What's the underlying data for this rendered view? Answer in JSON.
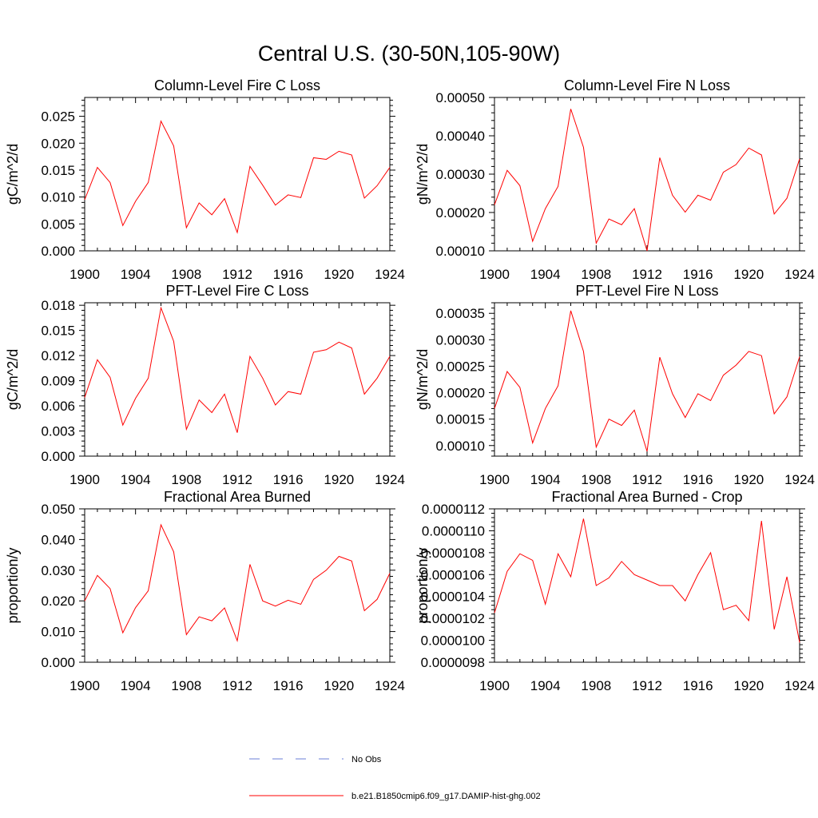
{
  "figure": {
    "title": "Central U.S. (30-50N,105-90W)"
  },
  "legend": {
    "items": [
      {
        "label": "No Obs",
        "style": "dashed",
        "color": "#6b7fd7"
      },
      {
        "label": "b.e21.B1850cmip6.f09_g17.DAMIP-hist-ghg.002",
        "style": "solid",
        "color": "#ff0000"
      }
    ]
  },
  "chart_data": [
    {
      "type": "line",
      "title": "Column-Level Fire C Loss",
      "ylabel": "gC/m^2/d",
      "xlabel": "",
      "xlim": [
        1900,
        1924
      ],
      "ylim": [
        0,
        0.0285
      ],
      "xticks": [
        "1900",
        "1904",
        "1908",
        "1912",
        "1916",
        "1920",
        "1924"
      ],
      "yticks": [
        "0.000",
        "0.005",
        "0.010",
        "0.015",
        "0.020",
        "0.025"
      ],
      "x": [
        1900,
        1901,
        1902,
        1903,
        1904,
        1905,
        1906,
        1907,
        1908,
        1909,
        1910,
        1911,
        1912,
        1913,
        1914,
        1915,
        1916,
        1917,
        1918,
        1919,
        1920,
        1921,
        1922,
        1923,
        1924
      ],
      "series": [
        {
          "name": "b.e21.B1850cmip6.f09_g17.DAMIP-hist-ghg.002",
          "color": "#ff0000",
          "values": [
            0.0095,
            0.0155,
            0.0127,
            0.0047,
            0.0092,
            0.0127,
            0.0241,
            0.0195,
            0.0043,
            0.0089,
            0.0067,
            0.0097,
            0.0034,
            0.0157,
            0.0122,
            0.0085,
            0.0104,
            0.0099,
            0.0173,
            0.017,
            0.0185,
            0.0178,
            0.0098,
            0.0121,
            0.0155
          ]
        }
      ]
    },
    {
      "type": "line",
      "title": "Column-Level Fire N Loss",
      "ylabel": "gN/m^2/d",
      "xlabel": "",
      "xlim": [
        1900,
        1924
      ],
      "ylim": [
        0.0001,
        0.0005
      ],
      "xticks": [
        "1900",
        "1904",
        "1908",
        "1912",
        "1916",
        "1920",
        "1924"
      ],
      "yticks": [
        "0.00010",
        "0.00020",
        "0.00030",
        "0.00040",
        "0.00050"
      ],
      "x": [
        1900,
        1901,
        1902,
        1903,
        1904,
        1905,
        1906,
        1907,
        1908,
        1909,
        1910,
        1911,
        1912,
        1913,
        1914,
        1915,
        1916,
        1917,
        1918,
        1919,
        1920,
        1921,
        1922,
        1923,
        1924
      ],
      "series": [
        {
          "name": "b.e21.B1850cmip6.f09_g17.DAMIP-hist-ghg.002",
          "color": "#ff0000",
          "values": [
            0.00022,
            0.00031,
            0.00027,
            0.000125,
            0.00021,
            0.000268,
            0.00047,
            0.00037,
            0.00012,
            0.000183,
            0.000168,
            0.00021,
            0.0001,
            0.000343,
            0.000245,
            0.000201,
            0.000245,
            0.000232,
            0.000305,
            0.000325,
            0.000368,
            0.00035,
            0.000196,
            0.000237,
            0.00034
          ]
        }
      ]
    },
    {
      "type": "line",
      "title": "PFT-Level Fire C Loss",
      "ylabel": "gC/m^2/d",
      "xlabel": "",
      "xlim": [
        1900,
        1924
      ],
      "ylim": [
        0,
        0.0183
      ],
      "xticks": [
        "1900",
        "1904",
        "1908",
        "1912",
        "1916",
        "1920",
        "1924"
      ],
      "yticks": [
        "0.000",
        "0.003",
        "0.006",
        "0.009",
        "0.012",
        "0.015",
        "0.018"
      ],
      "x": [
        1900,
        1901,
        1902,
        1903,
        1904,
        1905,
        1906,
        1907,
        1908,
        1909,
        1910,
        1911,
        1912,
        1913,
        1914,
        1915,
        1916,
        1917,
        1918,
        1919,
        1920,
        1921,
        1922,
        1923,
        1924
      ],
      "series": [
        {
          "name": "b.e21.B1850cmip6.f09_g17.DAMIP-hist-ghg.002",
          "color": "#ff0000",
          "values": [
            0.007,
            0.0115,
            0.0094,
            0.0037,
            0.0069,
            0.0093,
            0.0177,
            0.0137,
            0.0032,
            0.0067,
            0.0052,
            0.0074,
            0.0028,
            0.0119,
            0.0093,
            0.0061,
            0.0077,
            0.0074,
            0.0124,
            0.0127,
            0.0136,
            0.0129,
            0.0074,
            0.0093,
            0.0119
          ]
        }
      ]
    },
    {
      "type": "line",
      "title": "PFT-Level Fire N Loss",
      "ylabel": "gN/m^2/d",
      "xlabel": "",
      "xlim": [
        1900,
        1924
      ],
      "ylim": [
        8e-05,
        0.00037
      ],
      "xticks": [
        "1900",
        "1904",
        "1908",
        "1912",
        "1916",
        "1920",
        "1924"
      ],
      "yticks": [
        "0.00010",
        "0.00015",
        "0.00020",
        "0.00025",
        "0.00030",
        "0.00035"
      ],
      "x": [
        1900,
        1901,
        1902,
        1903,
        1904,
        1905,
        1906,
        1907,
        1908,
        1909,
        1910,
        1911,
        1912,
        1913,
        1914,
        1915,
        1916,
        1917,
        1918,
        1919,
        1920,
        1921,
        1922,
        1923,
        1924
      ],
      "series": [
        {
          "name": "b.e21.B1850cmip6.f09_g17.DAMIP-hist-ghg.002",
          "color": "#ff0000",
          "values": [
            0.00017,
            0.00024,
            0.00021,
            0.000105,
            0.00017,
            0.000213,
            0.000355,
            0.000278,
            9.7e-05,
            0.00015,
            0.000138,
            0.000167,
            8.9e-05,
            0.000267,
            0.000198,
            0.000153,
            0.000198,
            0.000185,
            0.000233,
            0.000252,
            0.000278,
            0.00027,
            0.00016,
            0.000192,
            0.000268
          ]
        }
      ]
    },
    {
      "type": "line",
      "title": "Fractional Area Burned",
      "ylabel": "proportion/y",
      "xlabel": "",
      "xlim": [
        1900,
        1924
      ],
      "ylim": [
        0,
        0.05
      ],
      "xticks": [
        "1900",
        "1904",
        "1908",
        "1912",
        "1916",
        "1920",
        "1924"
      ],
      "yticks": [
        "0.000",
        "0.010",
        "0.020",
        "0.030",
        "0.040",
        "0.050"
      ],
      "x": [
        1900,
        1901,
        1902,
        1903,
        1904,
        1905,
        1906,
        1907,
        1908,
        1909,
        1910,
        1911,
        1912,
        1913,
        1914,
        1915,
        1916,
        1917,
        1918,
        1919,
        1920,
        1921,
        1922,
        1923,
        1924
      ],
      "series": [
        {
          "name": "b.e21.B1850cmip6.f09_g17.DAMIP-hist-ghg.002",
          "color": "#ff0000",
          "values": [
            0.02,
            0.0283,
            0.024,
            0.0096,
            0.0178,
            0.0233,
            0.0448,
            0.036,
            0.009,
            0.0148,
            0.0135,
            0.0177,
            0.007,
            0.0319,
            0.02,
            0.0183,
            0.0202,
            0.0189,
            0.027,
            0.03,
            0.0345,
            0.033,
            0.0168,
            0.0205,
            0.029
          ]
        }
      ]
    },
    {
      "type": "line",
      "title": "Fractional Area Burned - Crop",
      "ylabel": "proportion/y",
      "xlabel": "",
      "xlim": [
        1900,
        1924
      ],
      "ylim": [
        9.8e-06,
        1.12e-05
      ],
      "xticks": [
        "1900",
        "1904",
        "1908",
        "1912",
        "1916",
        "1920",
        "1924"
      ],
      "yticks": [
        "0.0000098",
        "0.0000100",
        "0.0000102",
        "0.0000104",
        "0.0000106",
        "0.0000108",
        "0.0000110",
        "0.0000112"
      ],
      "x": [
        1900,
        1901,
        1902,
        1903,
        1904,
        1905,
        1906,
        1907,
        1908,
        1909,
        1910,
        1911,
        1912,
        1913,
        1914,
        1915,
        1916,
        1917,
        1918,
        1919,
        1920,
        1921,
        1922,
        1923,
        1924
      ],
      "series": [
        {
          "name": "b.e21.B1850cmip6.f09_g17.DAMIP-hist-ghg.002",
          "color": "#ff0000",
          "values": [
            1.025e-05,
            1.063e-05,
            1.079e-05,
            1.073e-05,
            1.033e-05,
            1.079e-05,
            1.058e-05,
            1.111e-05,
            1.05e-05,
            1.057e-05,
            1.072e-05,
            1.06e-05,
            1.055e-05,
            1.05e-05,
            1.05e-05,
            1.036e-05,
            1.06e-05,
            1.08e-05,
            1.028e-05,
            1.032e-05,
            1.018e-05,
            1.109e-05,
            1.01e-05,
            1.058e-05,
            9.98e-06
          ]
        }
      ]
    }
  ]
}
